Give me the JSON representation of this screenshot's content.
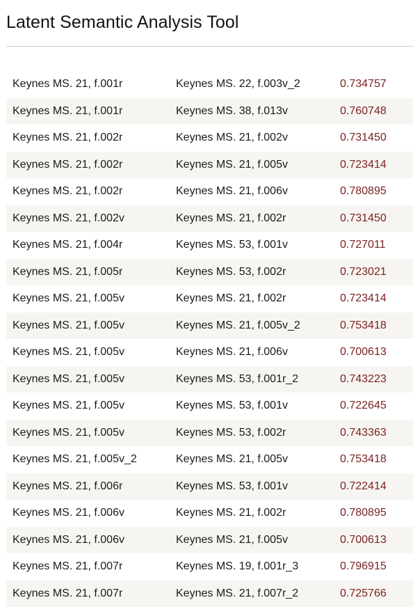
{
  "page": {
    "title": "Latent Semantic Analysis Tool"
  },
  "colors": {
    "score_text": "#7a2222",
    "row_stripe": "#f7f5f1",
    "rule": "#cccccc"
  },
  "results": {
    "rows": [
      {
        "doc_a": "Keynes MS. 21, f.001r",
        "doc_b": "Keynes MS. 22, f.003v_2",
        "score": "0.734757"
      },
      {
        "doc_a": "Keynes MS. 21, f.001r",
        "doc_b": "Keynes MS. 38, f.013v",
        "score": "0.760748"
      },
      {
        "doc_a": "Keynes MS. 21, f.002r",
        "doc_b": "Keynes MS. 21, f.002v",
        "score": "0.731450"
      },
      {
        "doc_a": "Keynes MS. 21, f.002r",
        "doc_b": "Keynes MS. 21, f.005v",
        "score": "0.723414"
      },
      {
        "doc_a": "Keynes MS. 21, f.002r",
        "doc_b": "Keynes MS. 21, f.006v",
        "score": "0.780895"
      },
      {
        "doc_a": "Keynes MS. 21, f.002v",
        "doc_b": "Keynes MS. 21, f.002r",
        "score": "0.731450"
      },
      {
        "doc_a": "Keynes MS. 21, f.004r",
        "doc_b": "Keynes MS. 53, f.001v",
        "score": "0.727011"
      },
      {
        "doc_a": "Keynes MS. 21, f.005r",
        "doc_b": "Keynes MS. 53, f.002r",
        "score": "0.723021"
      },
      {
        "doc_a": "Keynes MS. 21, f.005v",
        "doc_b": "Keynes MS. 21, f.002r",
        "score": "0.723414"
      },
      {
        "doc_a": "Keynes MS. 21, f.005v",
        "doc_b": "Keynes MS. 21, f.005v_2",
        "score": "0.753418"
      },
      {
        "doc_a": "Keynes MS. 21, f.005v",
        "doc_b": "Keynes MS. 21, f.006v",
        "score": "0.700613"
      },
      {
        "doc_a": "Keynes MS. 21, f.005v",
        "doc_b": "Keynes MS. 53, f.001r_2",
        "score": "0.743223"
      },
      {
        "doc_a": "Keynes MS. 21, f.005v",
        "doc_b": "Keynes MS. 53, f.001v",
        "score": "0.722645"
      },
      {
        "doc_a": "Keynes MS. 21, f.005v",
        "doc_b": "Keynes MS. 53, f.002r",
        "score": "0.743363"
      },
      {
        "doc_a": "Keynes MS. 21, f.005v_2",
        "doc_b": "Keynes MS. 21, f.005v",
        "score": "0.753418"
      },
      {
        "doc_a": "Keynes MS. 21, f.006r",
        "doc_b": "Keynes MS. 53, f.001v",
        "score": "0.722414"
      },
      {
        "doc_a": "Keynes MS. 21, f.006v",
        "doc_b": "Keynes MS. 21, f.002r",
        "score": "0.780895"
      },
      {
        "doc_a": "Keynes MS. 21, f.006v",
        "doc_b": "Keynes MS. 21, f.005v",
        "score": "0.700613"
      },
      {
        "doc_a": "Keynes MS. 21, f.007r",
        "doc_b": "Keynes MS. 19, f.001r_3",
        "score": "0.796915"
      },
      {
        "doc_a": "Keynes MS. 21, f.007r",
        "doc_b": "Keynes MS. 21, f.007r_2",
        "score": "0.725766"
      }
    ]
  }
}
